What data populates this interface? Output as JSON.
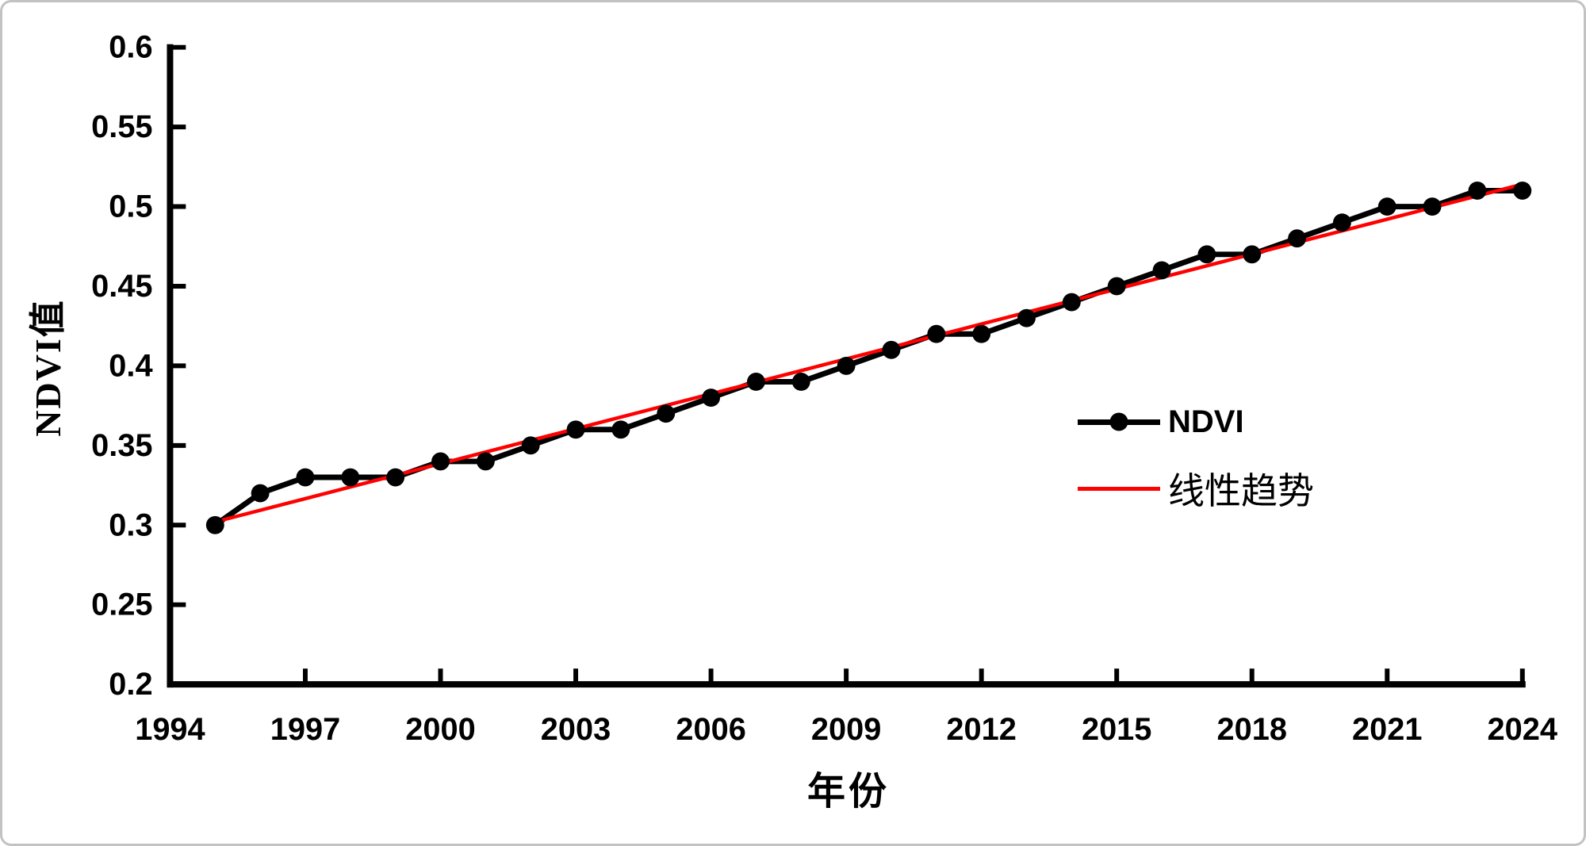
{
  "page": {
    "background_color": "#ffffff",
    "frame_border_color": "#c2c2c2"
  },
  "chart_data": {
    "type": "line",
    "title": "",
    "xlabel": "年份",
    "ylabel": "NDVI值",
    "x": [
      1995,
      1996,
      1997,
      1998,
      1999,
      2000,
      2001,
      2002,
      2003,
      2004,
      2005,
      2006,
      2007,
      2008,
      2009,
      2010,
      2011,
      2012,
      2013,
      2014,
      2015,
      2016,
      2017,
      2018,
      2019,
      2020,
      2021,
      2022,
      2023,
      2024
    ],
    "series": [
      {
        "name": "NDVI",
        "style": "line+markers",
        "color": "#000000",
        "values": [
          0.3,
          0.32,
          0.33,
          0.33,
          0.33,
          0.34,
          0.34,
          0.35,
          0.36,
          0.36,
          0.37,
          0.38,
          0.39,
          0.39,
          0.4,
          0.41,
          0.42,
          0.42,
          0.43,
          0.44,
          0.45,
          0.46,
          0.47,
          0.47,
          0.48,
          0.49,
          0.5,
          0.5,
          0.51,
          0.51
        ]
      },
      {
        "name": "线性趋势",
        "style": "line",
        "color": "#ff0000",
        "x": [
          1995,
          2024
        ],
        "values": [
          0.302,
          0.514
        ]
      }
    ],
    "xlim": [
      1994,
      2024
    ],
    "ylim": [
      0.2,
      0.6
    ],
    "x_ticks": [
      1994,
      1997,
      2000,
      2003,
      2006,
      2009,
      2012,
      2015,
      2018,
      2021,
      2024
    ],
    "y_ticks": [
      0.2,
      0.25,
      0.3,
      0.35,
      0.4,
      0.45,
      0.5,
      0.55,
      0.6
    ],
    "grid": false,
    "legend_position": "middle-right"
  }
}
